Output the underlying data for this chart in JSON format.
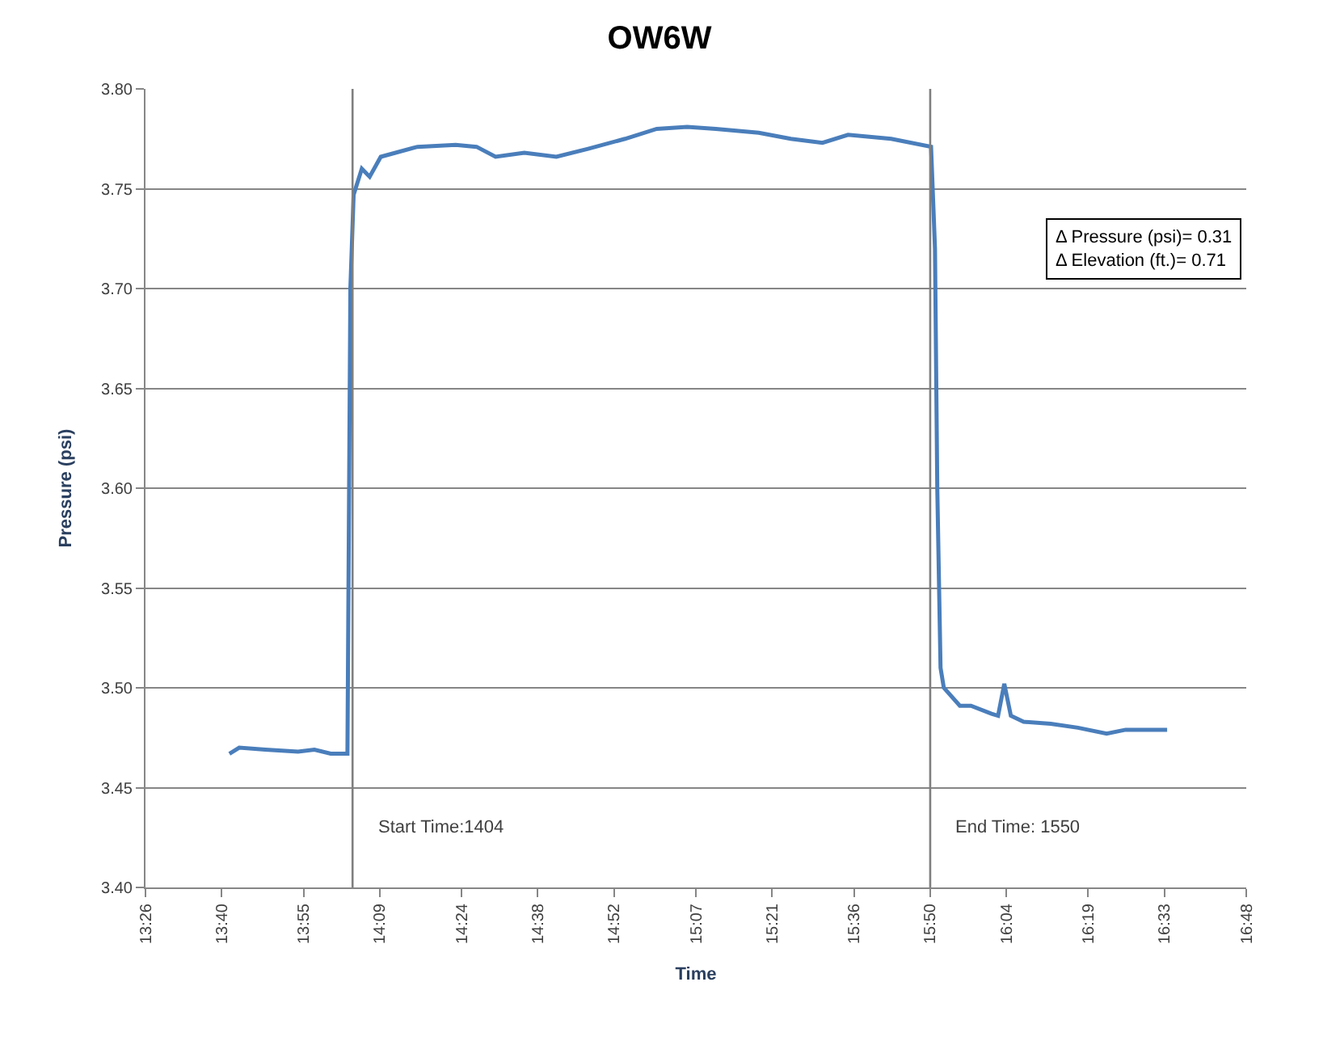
{
  "chart_data": {
    "type": "line",
    "title": "OW6W",
    "xlabel": "Time",
    "ylabel": "Pressure (psi)",
    "x": [
      13.69,
      13.72,
      13.8,
      13.9,
      13.95,
      14.0,
      14.051,
      14.06,
      14.07,
      14.095,
      14.119,
      14.153,
      14.265,
      14.382,
      14.446,
      14.504,
      14.592,
      14.69,
      14.787,
      14.9,
      14.997,
      15.09,
      15.178,
      15.309,
      15.407,
      15.504,
      15.582,
      15.714,
      15.836,
      15.848,
      15.855,
      15.865,
      15.875,
      15.924,
      15.958,
      16.021,
      16.041,
      16.06,
      16.08,
      16.119,
      16.202,
      16.285,
      16.373,
      16.431,
      16.558
    ],
    "series": [
      {
        "color": "#4a7ebb",
        "values": [
          3.467,
          3.47,
          3.469,
          3.468,
          3.469,
          3.467,
          3.467,
          3.7,
          3.747,
          3.76,
          3.756,
          3.766,
          3.771,
          3.772,
          3.771,
          3.766,
          3.768,
          3.766,
          3.77,
          3.775,
          3.78,
          3.781,
          3.78,
          3.778,
          3.775,
          3.773,
          3.777,
          3.775,
          3.771,
          3.72,
          3.6,
          3.51,
          3.5,
          3.491,
          3.491,
          3.487,
          3.486,
          3.502,
          3.486,
          3.483,
          3.482,
          3.48,
          3.477,
          3.479,
          3.479
        ]
      }
    ],
    "xlim": [
      13.4333333,
      16.8
    ],
    "xticks": [
      {
        "value": 13.4333333,
        "label": "13:26"
      },
      {
        "value": 13.6666667,
        "label": "13:40"
      },
      {
        "value": 13.9166667,
        "label": "13:55"
      },
      {
        "value": 14.15,
        "label": "14:09"
      },
      {
        "value": 14.4,
        "label": "14:24"
      },
      {
        "value": 14.6333333,
        "label": "14:38"
      },
      {
        "value": 14.8666667,
        "label": "14:52"
      },
      {
        "value": 15.1166667,
        "label": "15:07"
      },
      {
        "value": 15.35,
        "label": "15:21"
      },
      {
        "value": 15.6,
        "label": "15:36"
      },
      {
        "value": 15.8333333,
        "label": "15:50"
      },
      {
        "value": 16.0666667,
        "label": "16:04"
      },
      {
        "value": 16.3166667,
        "label": "16:19"
      },
      {
        "value": 16.55,
        "label": "16:33"
      },
      {
        "value": 16.8,
        "label": "16:48"
      }
    ],
    "ylim": [
      3.4,
      3.8
    ],
    "yticks": [
      {
        "value": 3.4,
        "label": "3.40"
      },
      {
        "value": 3.45,
        "label": "3.45"
      },
      {
        "value": 3.5,
        "label": "3.50"
      },
      {
        "value": 3.55,
        "label": "3.55"
      },
      {
        "value": 3.6,
        "label": "3.60"
      },
      {
        "value": 3.65,
        "label": "3.65"
      },
      {
        "value": 3.7,
        "label": "3.70"
      },
      {
        "value": 3.75,
        "label": "3.75"
      },
      {
        "value": 3.8,
        "label": "3.80"
      }
    ],
    "grid": "y",
    "ref_lines": [
      {
        "axis": "x",
        "value": 14.0666667,
        "color": "#7f7f7f"
      },
      {
        "axis": "x",
        "value": 15.8333333,
        "color": "#7f7f7f"
      }
    ],
    "annotations": [
      "Δ Pressure (psi)= 0.31\nΔ Elevation (ft.)= 0.71",
      {
        "text": "Start Time:1404",
        "x": 14.0666667,
        "y": 3.43
      },
      {
        "text": "End Time: 1550",
        "x": 15.8333333,
        "y": 3.43
      }
    ]
  }
}
